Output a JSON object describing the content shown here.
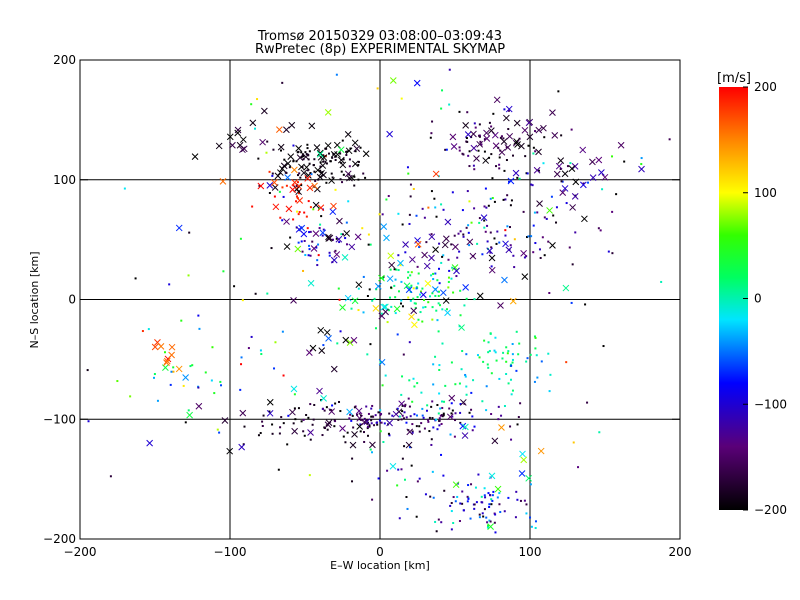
{
  "chart_data": {
    "type": "scatter",
    "title": "Tromsø 20150329 03:08:00–03:09:43",
    "subtitle": "RwPretec (8p) EXPERIMENTAL SKYMAP",
    "xlabel": "E–W location [km]",
    "ylabel": "N–S location [km]",
    "xlim": [
      -200,
      200
    ],
    "ylim": [
      -200,
      200
    ],
    "x_ticks": [
      -200,
      -100,
      0,
      100,
      200
    ],
    "y_ticks": [
      -200,
      -100,
      0,
      100,
      200
    ],
    "grid": true,
    "colorbar": {
      "label": "[m/s]",
      "range": [
        -200,
        200
      ],
      "ticks": [
        200,
        100,
        0,
        -100,
        -200
      ],
      "colormap": "black-purple-blue-cyan-green-yellow-red"
    },
    "markers": {
      "cross": "x",
      "point": "dot"
    },
    "point_clusters": [
      {
        "x": -42,
        "y": 112,
        "sx": 15,
        "sy": 10,
        "n": 90,
        "v": -190,
        "vs": 12
      },
      {
        "x": 80,
        "y": 128,
        "sx": 20,
        "sy": 14,
        "n": 60,
        "v": -170,
        "vs": 30
      },
      {
        "x": 25,
        "y": -100,
        "sx": 35,
        "sy": 7,
        "n": 110,
        "v": -150,
        "vs": 40
      },
      {
        "x": -30,
        "y": -104,
        "sx": 35,
        "sy": 9,
        "n": 70,
        "v": -190,
        "vs": 15
      },
      {
        "x": 70,
        "y": -172,
        "sx": 18,
        "sy": 12,
        "n": 80,
        "v": -90,
        "vs": 50
      },
      {
        "x": 25,
        "y": 3,
        "sx": 18,
        "sy": 12,
        "n": 80,
        "v": 20,
        "vs": 30
      },
      {
        "x": 90,
        "y": -50,
        "sx": 15,
        "sy": 12,
        "n": 40,
        "v": 10,
        "vs": 30
      },
      {
        "x": 50,
        "y": -72,
        "sx": 30,
        "sy": 14,
        "n": 50,
        "v": -10,
        "vs": 30
      },
      {
        "x": -40,
        "y": 48,
        "sx": 10,
        "sy": 9,
        "n": 30,
        "v": -110,
        "vs": 50
      },
      {
        "x": -55,
        "y": 85,
        "sx": 10,
        "sy": 12,
        "n": 20,
        "v": 190,
        "vs": 10
      },
      {
        "x": 60,
        "y": 65,
        "sx": 30,
        "sy": 22,
        "n": 70,
        "v": -140,
        "vs": 60
      },
      {
        "x": 110,
        "y": 80,
        "sx": 25,
        "sy": 30,
        "n": 40,
        "v": -100,
        "vs": 80
      },
      {
        "x": 0,
        "y": 40,
        "sx": 80,
        "sy": 70,
        "n": 150,
        "v": -60,
        "vs": 120
      },
      {
        "x": -120,
        "y": -60,
        "sx": 40,
        "sy": 30,
        "n": 40,
        "v": 0,
        "vs": 120
      },
      {
        "x": 20,
        "y": -140,
        "sx": 40,
        "sy": 30,
        "n": 40,
        "v": -100,
        "vs": 100
      }
    ],
    "cross_clusters": [
      {
        "x": -45,
        "y": 115,
        "sx": 22,
        "sy": 12,
        "n": 45,
        "v": -195,
        "vs": 8
      },
      {
        "x": 85,
        "y": 132,
        "sx": 22,
        "sy": 15,
        "n": 40,
        "v": -170,
        "vs": 30
      },
      {
        "x": -90,
        "y": 140,
        "sx": 12,
        "sy": 12,
        "n": 12,
        "v": -180,
        "vs": 20
      },
      {
        "x": 130,
        "y": 100,
        "sx": 20,
        "sy": 15,
        "n": 18,
        "v": -130,
        "vs": 60
      },
      {
        "x": -50,
        "y": 90,
        "sx": 12,
        "sy": 10,
        "n": 12,
        "v": 185,
        "vs": 15
      },
      {
        "x": -35,
        "y": 50,
        "sx": 15,
        "sy": 10,
        "n": 18,
        "v": -120,
        "vs": 80
      },
      {
        "x": 20,
        "y": 0,
        "sx": 30,
        "sy": 15,
        "n": 25,
        "v": 0,
        "vs": 70
      },
      {
        "x": -140,
        "y": -48,
        "sx": 8,
        "sy": 8,
        "n": 10,
        "v": 130,
        "vs": 40
      },
      {
        "x": -80,
        "y": -90,
        "sx": 25,
        "sy": 15,
        "n": 12,
        "v": -80,
        "vs": 100
      },
      {
        "x": 40,
        "y": 40,
        "sx": 30,
        "sy": 15,
        "n": 20,
        "v": -160,
        "vs": 40
      },
      {
        "x": 0,
        "y": -100,
        "sx": 40,
        "sy": 10,
        "n": 25,
        "v": -170,
        "vs": 30
      },
      {
        "x": -20,
        "y": -20,
        "sx": 30,
        "sy": 20,
        "n": 15,
        "v": -150,
        "vs": 60
      },
      {
        "x": 10,
        "y": 80,
        "sx": 70,
        "sy": 60,
        "n": 40,
        "v": -40,
        "vs": 130
      },
      {
        "x": 60,
        "y": -130,
        "sx": 40,
        "sy": 40,
        "n": 15,
        "v": -40,
        "vs": 120
      }
    ]
  }
}
